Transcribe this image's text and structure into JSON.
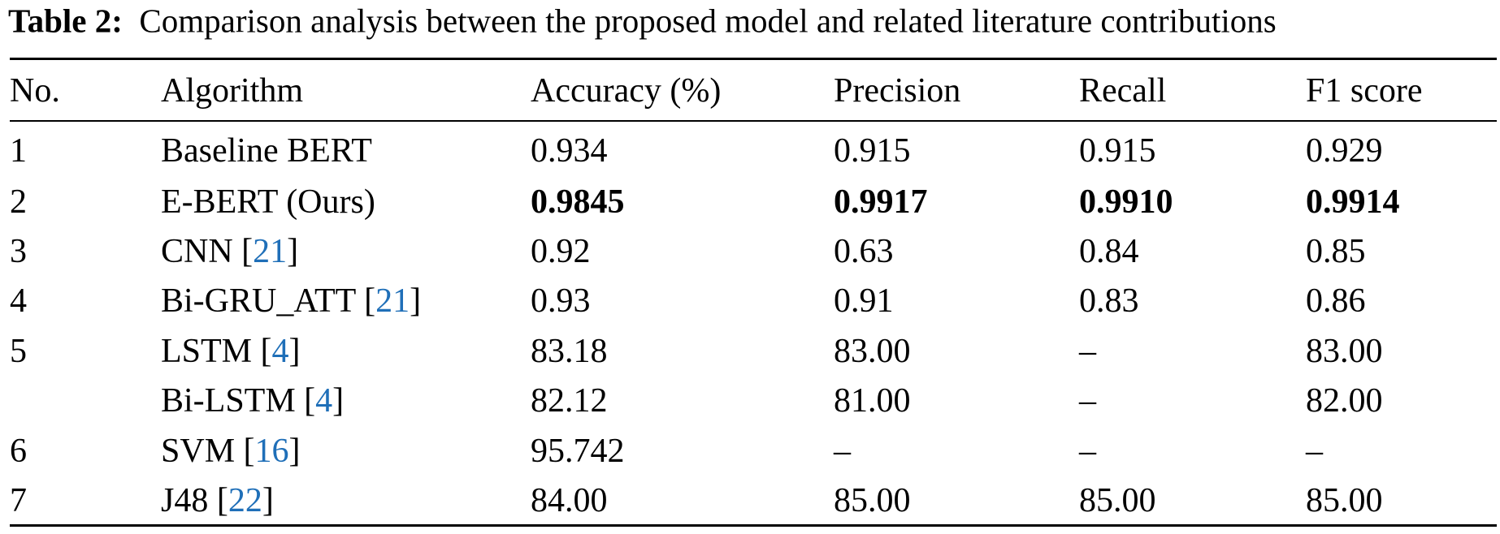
{
  "caption": {
    "label": "Table 2:",
    "text": "Comparison analysis between the proposed model and related literature contributions"
  },
  "table": {
    "header": [
      "No.",
      "Algorithm",
      "Accuracy (%)",
      "Precision",
      "Recall",
      "F1 score"
    ],
    "rows": [
      [
        "1",
        [
          "Baseline BERT"
        ],
        "0.934",
        "0.915",
        "0.915",
        "0.929"
      ],
      [
        "2",
        [
          "E-BERT (Ours)"
        ],
        "0.9845",
        "0.9917",
        "0.9910",
        "0.9914"
      ],
      [
        "3",
        [
          "CNN [",
          "21",
          "]"
        ],
        "0.92",
        "0.63",
        "0.84",
        "0.85"
      ],
      [
        "4",
        [
          "Bi-GRU_ATT [",
          "21",
          "]"
        ],
        "0.93",
        "0.91",
        "0.83",
        "0.86"
      ],
      [
        "5",
        [
          "LSTM [",
          "4",
          "]"
        ],
        "83.18",
        "83.00",
        "–",
        "83.00"
      ],
      [
        null,
        [
          "Bi-LSTM [",
          "4",
          "]"
        ],
        "82.12",
        "81.00",
        "–",
        "82.00"
      ],
      [
        "6",
        [
          "SVM [",
          "16",
          "]"
        ],
        "95.742",
        "–",
        "–",
        "–"
      ],
      [
        "7",
        [
          "J48 [",
          "22",
          "]"
        ],
        "84.00",
        "85.00",
        "85.00",
        "85.00"
      ]
    ]
  }
}
